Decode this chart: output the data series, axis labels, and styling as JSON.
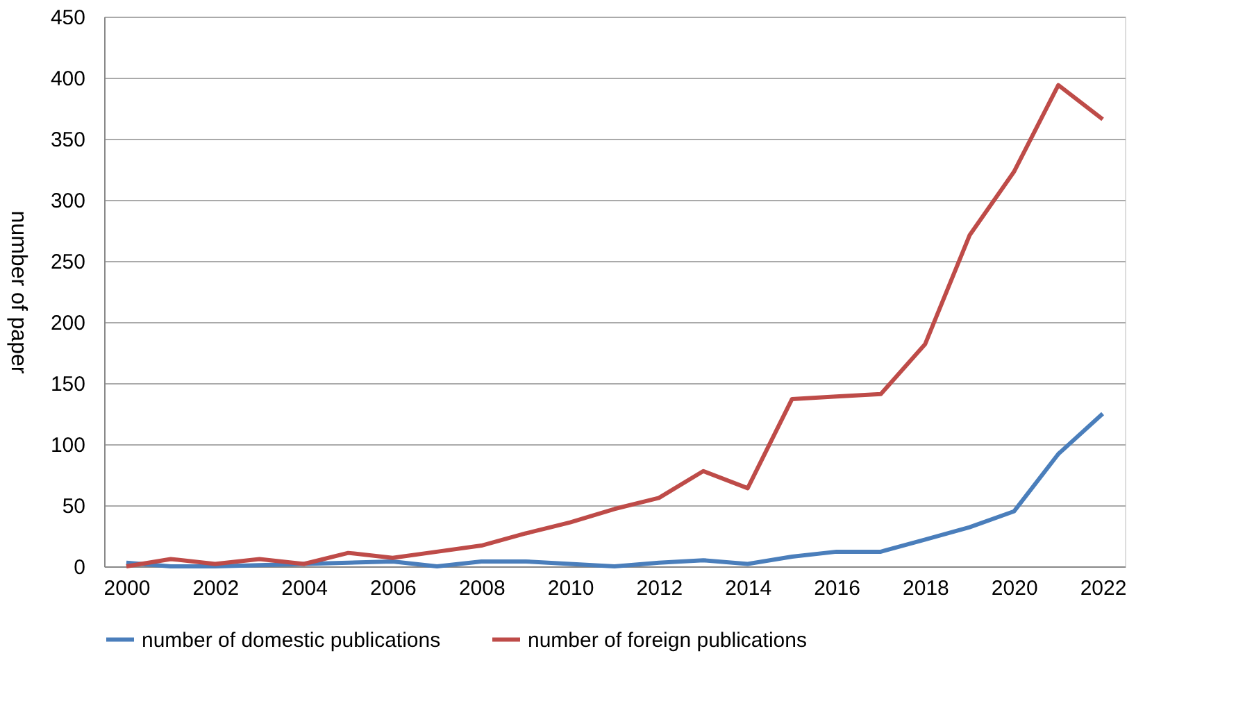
{
  "chart_data": {
    "type": "line",
    "ylabel": "number of paper",
    "x": [
      2000,
      2001,
      2002,
      2003,
      2004,
      2005,
      2006,
      2007,
      2008,
      2009,
      2010,
      2011,
      2012,
      2013,
      2014,
      2015,
      2016,
      2017,
      2018,
      2019,
      2020,
      2021,
      2022
    ],
    "series": [
      {
        "name": "number of domestic publications",
        "color": "#4a7ebb",
        "values": [
          3,
          0,
          0,
          1,
          2,
          3,
          4,
          0,
          4,
          4,
          2,
          0,
          3,
          5,
          2,
          8,
          12,
          12,
          22,
          32,
          45,
          92,
          125
        ]
      },
      {
        "name": "number of foreign publications",
        "color": "#be4b48",
        "values": [
          0,
          6,
          2,
          6,
          2,
          11,
          7,
          12,
          17,
          27,
          36,
          47,
          56,
          78,
          64,
          137,
          139,
          141,
          182,
          271,
          323,
          394,
          366
        ]
      }
    ],
    "xlim": [
      1999.5,
      2022.5
    ],
    "xticks": [
      2000,
      2002,
      2004,
      2006,
      2008,
      2010,
      2012,
      2014,
      2016,
      2018,
      2020,
      2022
    ],
    "ylim": [
      0,
      450
    ],
    "yticks": [
      0,
      50,
      100,
      150,
      200,
      250,
      300,
      350,
      400,
      450
    ],
    "grid": "y",
    "legend": "bottom",
    "marker": "none",
    "line_style": "solid"
  }
}
